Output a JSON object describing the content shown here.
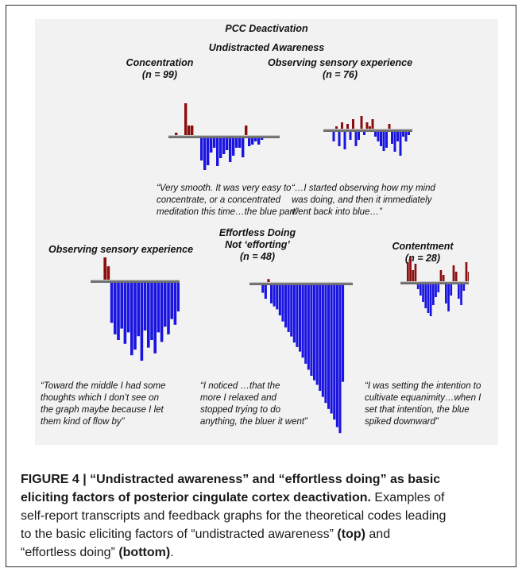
{
  "figure": {
    "top_title": "PCC Deactivation",
    "section_top": "Undistracted Awareness",
    "panels": [
      {
        "title_lines": [
          "Concentration",
          "(n = 99)"
        ],
        "quote_lines": [
          "“Very smooth. It was very easy to",
          "concentrate, or a concentrated",
          "meditation this time…the blue part”"
        ]
      },
      {
        "title_lines": [
          "Observing sensory experience",
          "(n = 76)"
        ],
        "quote_lines": [
          "“…I started observing how my mind",
          "was doing, and then it immediately",
          "went back into blue…”"
        ]
      },
      {
        "title_lines": [
          "Observing sensory experience"
        ],
        "quote_lines": [
          "“Toward the middle I had some",
          "thoughts which I don’t see on",
          "the graph maybe because I let",
          "them kind of flow by”"
        ]
      },
      {
        "title_lines": [
          "Effortless Doing",
          "Not ‘efforting’",
          "(n = 48)"
        ],
        "quote_lines": [
          "“I noticed …that the",
          "more I relaxed and",
          "stopped trying to do",
          "anything, the bluer it went”"
        ]
      },
      {
        "title_lines": [
          "Contentment",
          "(n = 28)"
        ],
        "quote_lines": [
          "“I was setting the intention to",
          "cultivate equanimity…when I",
          "set that intention, the blue",
          "spiked downward”"
        ]
      }
    ],
    "colors": {
      "activation": "#8b0d0d",
      "deactivation": "#1a14e0",
      "baseline": "#6e6e6e",
      "panel_bg": "#f2f2f2"
    }
  },
  "caption": {
    "label": "FIGURE 4 | “Undistracted awareness” and “effortless doing” as basic",
    "label_line2": "eliciting factors of posterior cingulate cortex deactivation.",
    "text_line2_rest": " Examples of",
    "line3": "self-report transcripts and feedback graphs for the theoretical codes leading",
    "line4_a": "to the basic eliciting factors of “undistracted awareness” ",
    "line4_bold": "(top)",
    "line4_b": " and",
    "line5_a": "“effortless doing” ",
    "line5_bold": "(bottom)",
    "line5_b": "."
  },
  "chart_data": [
    {
      "type": "bar",
      "title": "Concentration (n = 99)",
      "values": [
        3,
        0,
        0,
        40,
        12,
        12,
        0,
        0,
        -28,
        -40,
        -34,
        -18,
        -12,
        -35,
        -25,
        -20,
        -15,
        -30,
        -22,
        -12,
        -12,
        -24,
        12,
        -10,
        -8,
        -4,
        -8,
        -2
      ]
    },
    {
      "type": "bar",
      "title": "Observing sensory experience (n = 76)",
      "values": [
        0,
        -12,
        3,
        -18,
        8,
        -22,
        6,
        -10,
        12,
        -18,
        -10,
        16,
        -4,
        8,
        3,
        12,
        -6,
        -12,
        -18,
        -24,
        -20,
        6,
        -15,
        -25,
        -12,
        -30,
        -6,
        -12,
        -4
      ]
    },
    {
      "type": "bar",
      "title": "Observing sensory experience",
      "values": [
        0,
        0,
        30,
        14,
        -42,
        -54,
        -60,
        -48,
        -64,
        -52,
        -76,
        -70,
        -56,
        -82,
        -50,
        -68,
        -60,
        -74,
        -52,
        -62,
        -46,
        -54,
        -38,
        -44,
        -30
      ]
    },
    {
      "type": "bar",
      "title": "Effortless Doing Not ‘efforting’ (n = 48)",
      "values": [
        0,
        0,
        -10,
        -18,
        4,
        -24,
        -28,
        -32,
        -40,
        -48,
        -56,
        -62,
        -68,
        -76,
        -82,
        -88,
        -96,
        -104,
        -112,
        -120,
        -126,
        -132,
        -140,
        -148,
        -156,
        -164,
        -170,
        -178,
        -188,
        -196,
        -128
      ]
    },
    {
      "type": "bar",
      "title": "Contentment (n = 28)",
      "values": [
        24,
        30,
        14,
        22,
        -6,
        -14,
        -22,
        -30,
        -36,
        -40,
        -26,
        -16,
        -10,
        14,
        8,
        -24,
        -34,
        -14,
        20,
        12,
        -18,
        -26,
        -8,
        24,
        12
      ]
    }
  ]
}
